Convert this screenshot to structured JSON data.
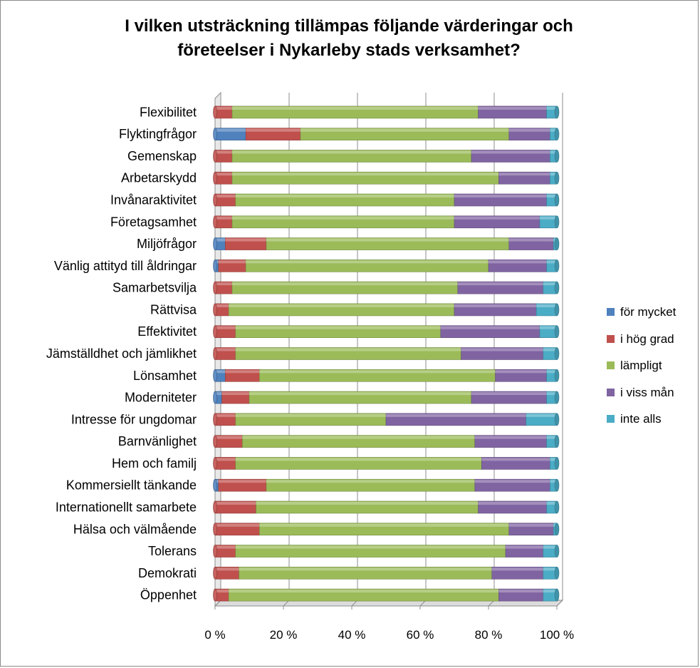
{
  "chart_data": {
    "type": "bar",
    "orientation": "horizontal",
    "stacked": "percent",
    "title": "I vilken utsträckning tillämpas följande värderingar och företeelser i Nykarleby stads verksamhet?",
    "title_lines": [
      "I vilken utsträckning tillämpas följande värderingar och",
      "företeelser i Nykarleby stads verksamhet?"
    ],
    "categories": [
      "Flexibilitet",
      "Flyktingfrågor",
      "Gemenskap",
      "Arbetarskydd",
      "Invånaraktivitet",
      "Företagsamhet",
      "Miljöfrågor",
      "Vänlig attityd till åldringar",
      "Samarbetsvilja",
      "Rättvisa",
      "Effektivitet",
      "Jämställdhet och jämlikhet",
      "Lönsamhet",
      "Moderniteter",
      "Intresse för ungdomar",
      "Barnvänlighet",
      "Hem och familj",
      "Kommersiellt tänkande",
      "Internationellt samarbete",
      "Hälsa och välmående",
      "Tolerans",
      "Demokrati",
      "Öppenhet"
    ],
    "series": [
      {
        "name": "för mycket",
        "color": "#4f81bd",
        "values": [
          0,
          9,
          0,
          0,
          0,
          0,
          3,
          1,
          0,
          0,
          0,
          0,
          3,
          2,
          0,
          0,
          0,
          1,
          0,
          0,
          0,
          0,
          0
        ]
      },
      {
        "name": "i hög grad",
        "color": "#c0504d",
        "values": [
          5,
          16,
          5,
          5,
          6,
          5,
          12,
          8,
          5,
          4,
          6,
          6,
          10,
          8,
          6,
          8,
          6,
          14,
          12,
          13,
          6,
          7,
          4
        ]
      },
      {
        "name": "lämpligt",
        "color": "#9bbb59",
        "values": [
          72,
          61,
          70,
          78,
          64,
          65,
          71,
          71,
          66,
          66,
          60,
          66,
          69,
          65,
          44,
          68,
          72,
          61,
          65,
          73,
          79,
          74,
          79
        ]
      },
      {
        "name": "i viss mån",
        "color": "#8064a2",
        "values": [
          20,
          12,
          23,
          15,
          27,
          25,
          13,
          17,
          25,
          24,
          29,
          24,
          15,
          22,
          41,
          21,
          20,
          22,
          20,
          13,
          11,
          15,
          13
        ]
      },
      {
        "name": "inte alls",
        "color": "#4bacc6",
        "values": [
          3,
          2,
          2,
          2,
          3,
          5,
          1,
          3,
          4,
          6,
          5,
          4,
          3,
          3,
          9,
          3,
          2,
          2,
          3,
          1,
          4,
          4,
          4
        ]
      }
    ],
    "x_ticks": [
      "0 %",
      "20 %",
      "40 %",
      "60 %",
      "80 %",
      "100 %"
    ],
    "xlim": [
      0,
      100
    ],
    "grid": true,
    "legend_position": "right"
  }
}
